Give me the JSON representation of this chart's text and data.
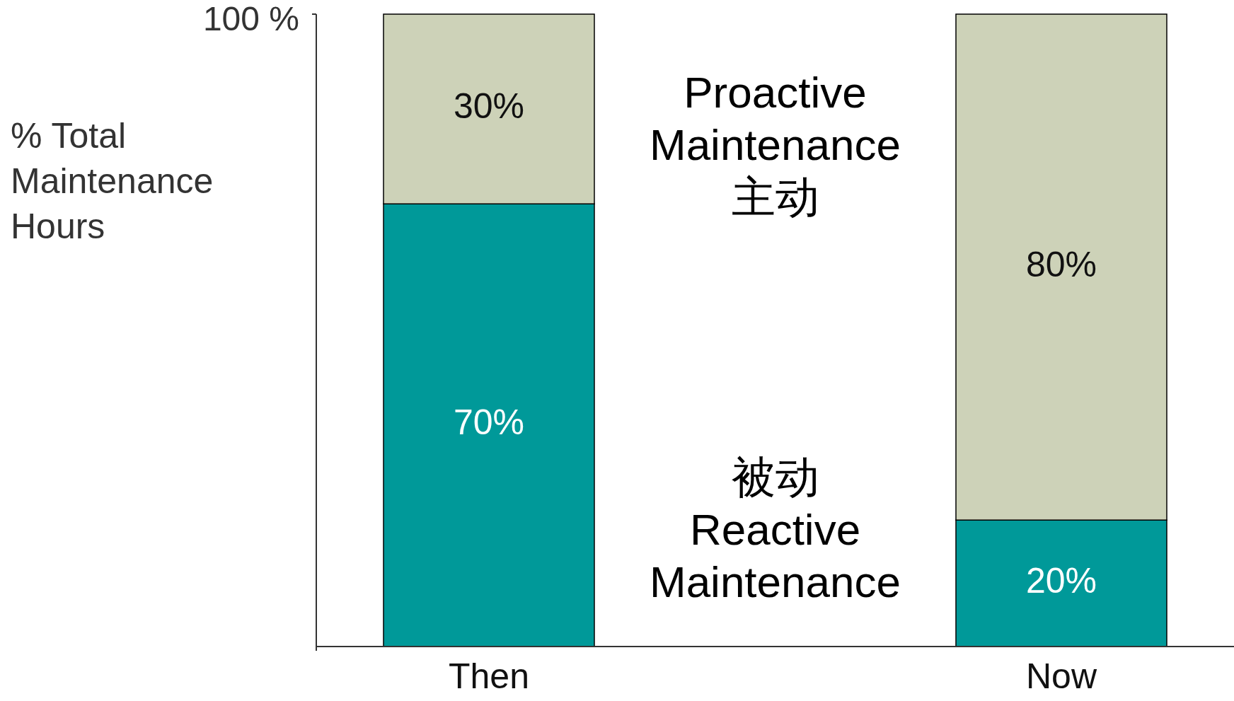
{
  "chart_data": {
    "type": "bar",
    "stacked": true,
    "categories": [
      "Then",
      "Now"
    ],
    "ylabel": "% Total\nMaintenance\nHours",
    "ylim": [
      0,
      100
    ],
    "yticks": [
      {
        "value": 100,
        "label": "100 %"
      }
    ],
    "series": [
      {
        "name": "被动\nReactive\nMaintenance",
        "color": "#009999",
        "values": [
          70,
          20
        ],
        "value_labels": [
          "70%",
          "20%"
        ]
      },
      {
        "name": "Proactive\nMaintenance\n主动",
        "color": "#cdd2b8",
        "values": [
          30,
          80
        ],
        "value_labels": [
          "30%",
          "80%"
        ]
      }
    ]
  }
}
